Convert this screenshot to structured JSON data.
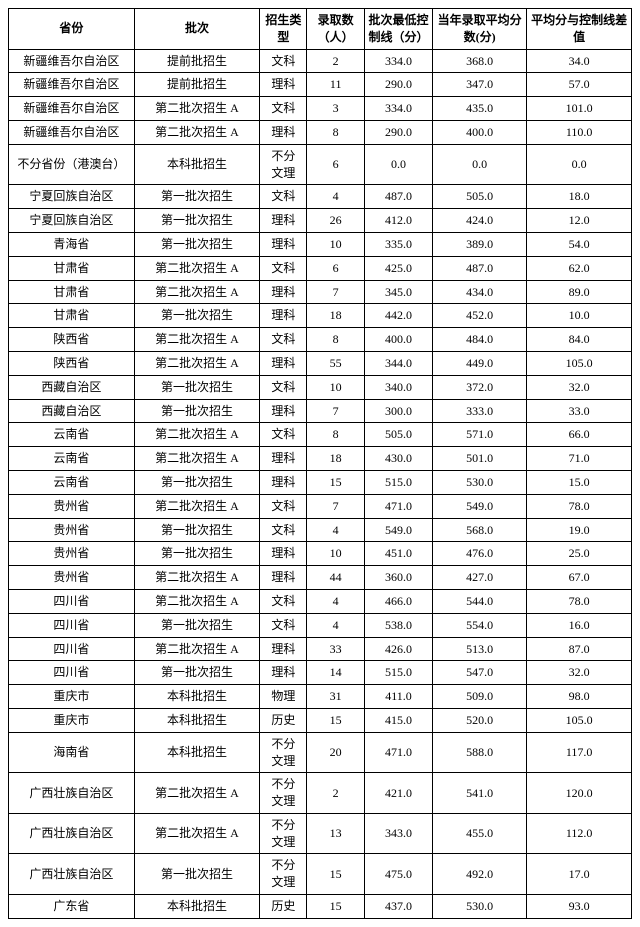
{
  "headers": {
    "province": "省份",
    "batch": "批次",
    "type": "招生类型",
    "count": "录取数（人）",
    "minline": "批次最低控制线（分）",
    "avg": "当年录取平均分数(分)",
    "diff": "平均分与控制线差值"
  },
  "rows": [
    {
      "prov": "新疆维吾尔自治区",
      "batch": "提前批招生",
      "type": "文科",
      "count": "2",
      "min": "334.0",
      "avg": "368.0",
      "diff": "34.0"
    },
    {
      "prov": "新疆维吾尔自治区",
      "batch": "提前批招生",
      "type": "理科",
      "count": "11",
      "min": "290.0",
      "avg": "347.0",
      "diff": "57.0"
    },
    {
      "prov": "新疆维吾尔自治区",
      "batch": "第二批次招生 A",
      "type": "文科",
      "count": "3",
      "min": "334.0",
      "avg": "435.0",
      "diff": "101.0"
    },
    {
      "prov": "新疆维吾尔自治区",
      "batch": "第二批次招生 A",
      "type": "理科",
      "count": "8",
      "min": "290.0",
      "avg": "400.0",
      "diff": "110.0"
    },
    {
      "prov": "不分省份（港澳台）",
      "batch": "本科批招生",
      "type": "不分文理",
      "count": "6",
      "min": "0.0",
      "avg": "0.0",
      "diff": "0.0"
    },
    {
      "prov": "宁夏回族自治区",
      "batch": "第一批次招生",
      "type": "文科",
      "count": "4",
      "min": "487.0",
      "avg": "505.0",
      "diff": "18.0"
    },
    {
      "prov": "宁夏回族自治区",
      "batch": "第一批次招生",
      "type": "理科",
      "count": "26",
      "min": "412.0",
      "avg": "424.0",
      "diff": "12.0"
    },
    {
      "prov": "青海省",
      "batch": "第一批次招生",
      "type": "理科",
      "count": "10",
      "min": "335.0",
      "avg": "389.0",
      "diff": "54.0"
    },
    {
      "prov": "甘肃省",
      "batch": "第二批次招生 A",
      "type": "文科",
      "count": "6",
      "min": "425.0",
      "avg": "487.0",
      "diff": "62.0"
    },
    {
      "prov": "甘肃省",
      "batch": "第二批次招生 A",
      "type": "理科",
      "count": "7",
      "min": "345.0",
      "avg": "434.0",
      "diff": "89.0"
    },
    {
      "prov": "甘肃省",
      "batch": "第一批次招生",
      "type": "理科",
      "count": "18",
      "min": "442.0",
      "avg": "452.0",
      "diff": "10.0"
    },
    {
      "prov": "陕西省",
      "batch": "第二批次招生 A",
      "type": "文科",
      "count": "8",
      "min": "400.0",
      "avg": "484.0",
      "diff": "84.0"
    },
    {
      "prov": "陕西省",
      "batch": "第二批次招生 A",
      "type": "理科",
      "count": "55",
      "min": "344.0",
      "avg": "449.0",
      "diff": "105.0"
    },
    {
      "prov": "西藏自治区",
      "batch": "第一批次招生",
      "type": "文科",
      "count": "10",
      "min": "340.0",
      "avg": "372.0",
      "diff": "32.0"
    },
    {
      "prov": "西藏自治区",
      "batch": "第一批次招生",
      "type": "理科",
      "count": "7",
      "min": "300.0",
      "avg": "333.0",
      "diff": "33.0"
    },
    {
      "prov": "云南省",
      "batch": "第二批次招生 A",
      "type": "文科",
      "count": "8",
      "min": "505.0",
      "avg": "571.0",
      "diff": "66.0"
    },
    {
      "prov": "云南省",
      "batch": "第二批次招生 A",
      "type": "理科",
      "count": "18",
      "min": "430.0",
      "avg": "501.0",
      "diff": "71.0"
    },
    {
      "prov": "云南省",
      "batch": "第一批次招生",
      "type": "理科",
      "count": "15",
      "min": "515.0",
      "avg": "530.0",
      "diff": "15.0"
    },
    {
      "prov": "贵州省",
      "batch": "第二批次招生 A",
      "type": "文科",
      "count": "7",
      "min": "471.0",
      "avg": "549.0",
      "diff": "78.0"
    },
    {
      "prov": "贵州省",
      "batch": "第一批次招生",
      "type": "文科",
      "count": "4",
      "min": "549.0",
      "avg": "568.0",
      "diff": "19.0"
    },
    {
      "prov": "贵州省",
      "batch": "第一批次招生",
      "type": "理科",
      "count": "10",
      "min": "451.0",
      "avg": "476.0",
      "diff": "25.0"
    },
    {
      "prov": "贵州省",
      "batch": "第二批次招生 A",
      "type": "理科",
      "count": "44",
      "min": "360.0",
      "avg": "427.0",
      "diff": "67.0"
    },
    {
      "prov": "四川省",
      "batch": "第二批次招生 A",
      "type": "文科",
      "count": "4",
      "min": "466.0",
      "avg": "544.0",
      "diff": "78.0"
    },
    {
      "prov": "四川省",
      "batch": "第一批次招生",
      "type": "文科",
      "count": "4",
      "min": "538.0",
      "avg": "554.0",
      "diff": "16.0"
    },
    {
      "prov": "四川省",
      "batch": "第二批次招生 A",
      "type": "理科",
      "count": "33",
      "min": "426.0",
      "avg": "513.0",
      "diff": "87.0"
    },
    {
      "prov": "四川省",
      "batch": "第一批次招生",
      "type": "理科",
      "count": "14",
      "min": "515.0",
      "avg": "547.0",
      "diff": "32.0"
    },
    {
      "prov": "重庆市",
      "batch": "本科批招生",
      "type": "物理",
      "count": "31",
      "min": "411.0",
      "avg": "509.0",
      "diff": "98.0"
    },
    {
      "prov": "重庆市",
      "batch": "本科批招生",
      "type": "历史",
      "count": "15",
      "min": "415.0",
      "avg": "520.0",
      "diff": "105.0"
    },
    {
      "prov": "海南省",
      "batch": "本科批招生",
      "type": "不分文理",
      "count": "20",
      "min": "471.0",
      "avg": "588.0",
      "diff": "117.0"
    },
    {
      "prov": "广西壮族自治区",
      "batch": "第二批次招生 A",
      "type": "不分文理",
      "count": "2",
      "min": "421.0",
      "avg": "541.0",
      "diff": "120.0"
    },
    {
      "prov": "广西壮族自治区",
      "batch": "第二批次招生 A",
      "type": "不分文理",
      "count": "13",
      "min": "343.0",
      "avg": "455.0",
      "diff": "112.0"
    },
    {
      "prov": "广西壮族自治区",
      "batch": "第一批次招生",
      "type": "不分文理",
      "count": "15",
      "min": "475.0",
      "avg": "492.0",
      "diff": "17.0"
    },
    {
      "prov": "广东省",
      "batch": "本科批招生",
      "type": "历史",
      "count": "15",
      "min": "437.0",
      "avg": "530.0",
      "diff": "93.0"
    }
  ]
}
